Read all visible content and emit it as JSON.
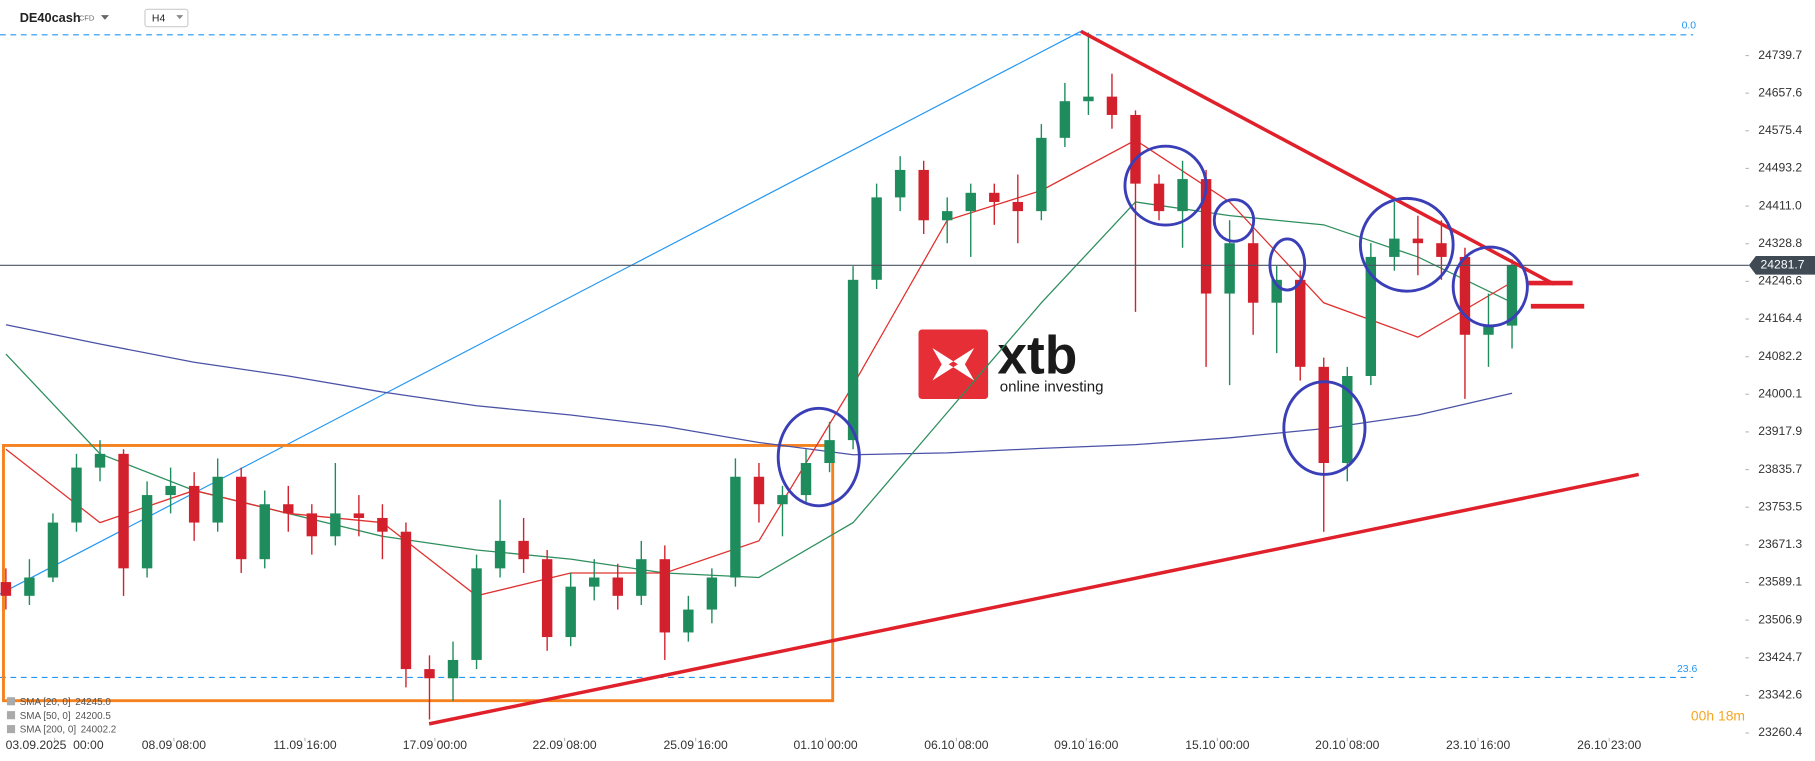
{
  "header": {
    "symbol": "DE40cash",
    "instrument_type": "CFD",
    "timeframe": "H4"
  },
  "watermark": {
    "brand": "xtb",
    "tagline": "online investing"
  },
  "fib_labels": [
    "0.0",
    "23.6"
  ],
  "countdown": "00h 18m",
  "chart_data": {
    "type": "candlestick",
    "up_color": "#1e8c5c",
    "down_color": "#d3202d",
    "open": [
      23590,
      23560,
      23600,
      23720,
      23840,
      23870,
      23620,
      23780,
      23800,
      23720,
      23820,
      23640,
      23760,
      23740,
      23690,
      23740,
      23730,
      23700,
      23400,
      23380,
      23420,
      23620,
      23680,
      23640,
      23470,
      23580,
      23600,
      23560,
      23640,
      23480,
      23530,
      23600,
      23820,
      23760,
      23780,
      23850,
      23900,
      24250,
      24430,
      24490,
      24380,
      24400,
      24440,
      24420,
      24400,
      24560,
      24640,
      24650,
      24610,
      24460,
      24400,
      24470,
      24220,
      24330,
      24200,
      24250,
      24060,
      23850,
      24040,
      24300,
      24340,
      24330,
      24300,
      24130,
      24150
    ],
    "high": [
      23620,
      23640,
      23740,
      23870,
      23900,
      23880,
      23810,
      23840,
      23830,
      23860,
      23840,
      23790,
      23800,
      23760,
      23850,
      23780,
      23760,
      23720,
      23430,
      23460,
      23650,
      23770,
      23730,
      23660,
      23610,
      23640,
      23630,
      23680,
      23670,
      23560,
      23620,
      23860,
      23850,
      23800,
      23880,
      23940,
      24280,
      24460,
      24520,
      24510,
      24430,
      24460,
      24460,
      24480,
      24590,
      24680,
      24790,
      24700,
      24620,
      24480,
      24510,
      24490,
      24380,
      24360,
      24280,
      24270,
      24080,
      24060,
      24330,
      24420,
      24390,
      24380,
      24320,
      24220,
      24295
    ],
    "low": [
      23530,
      23540,
      23590,
      23700,
      23810,
      23560,
      23600,
      23740,
      23680,
      23700,
      23610,
      23620,
      23700,
      23650,
      23670,
      23690,
      23640,
      23360,
      23290,
      23330,
      23400,
      23600,
      23610,
      23440,
      23450,
      23550,
      23530,
      23540,
      23420,
      23460,
      23500,
      23580,
      23720,
      23690,
      23760,
      23830,
      23880,
      24230,
      24400,
      24350,
      24330,
      24300,
      24370,
      24330,
      24380,
      24540,
      24610,
      24580,
      24180,
      24380,
      24320,
      24060,
      24020,
      24130,
      24090,
      24030,
      23700,
      23810,
      24020,
      24270,
      24260,
      24250,
      23990,
      24060,
      24100
    ],
    "close": [
      23560,
      23600,
      23720,
      23840,
      23870,
      23620,
      23780,
      23800,
      23720,
      23820,
      23640,
      23760,
      23740,
      23690,
      23740,
      23730,
      23700,
      23400,
      23380,
      23420,
      23620,
      23680,
      23640,
      23470,
      23580,
      23600,
      23560,
      23640,
      23480,
      23530,
      23600,
      23820,
      23760,
      23780,
      23850,
      23900,
      24250,
      24430,
      24490,
      24380,
      24400,
      24440,
      24420,
      24400,
      24560,
      24640,
      24650,
      24610,
      24460,
      24400,
      24470,
      24220,
      24330,
      24200,
      24250,
      24060,
      23850,
      24040,
      24300,
      24340,
      24330,
      24300,
      24130,
      24150,
      24281.7
    ],
    "series": [
      {
        "name": "SMA [200, 0]",
        "color": "#4b52a6",
        "x": [
          0,
          4,
          8,
          12,
          16,
          20,
          24,
          28,
          32,
          36,
          40,
          44,
          48,
          52,
          56,
          60,
          64
        ],
        "values": [
          24152,
          24110,
          24070,
          24040,
          24005,
          23975,
          23955,
          23930,
          23895,
          23868,
          23872,
          23882,
          23890,
          23905,
          23925,
          23955,
          24002.2
        ]
      },
      {
        "name": "SMA [50, 0]",
        "color": "#2e8f5e",
        "x": [
          0,
          4,
          8,
          12,
          16,
          20,
          24,
          28,
          32,
          36,
          40,
          44,
          48,
          52,
          56,
          60,
          64
        ],
        "values": [
          24088,
          23870,
          23790,
          23740,
          23690,
          23660,
          23640,
          23610,
          23600,
          23720,
          23960,
          24200,
          24420,
          24390,
          24370,
          24300,
          24200.5
        ]
      },
      {
        "name": "SMA [20, 0]",
        "color": "#e0312f",
        "x": [
          0,
          4,
          8,
          12,
          16,
          20,
          24,
          28,
          32,
          36,
          40,
          44,
          48,
          52,
          56,
          60,
          64
        ],
        "values": [
          23880,
          23720,
          23790,
          23740,
          23720,
          23560,
          23610,
          23610,
          23680,
          24020,
          24380,
          24445,
          24555,
          24420,
          24200,
          24125,
          24245.0
        ],
        "value_labels": [
          null,
          null,
          null,
          null,
          null,
          null,
          null,
          null,
          null,
          null,
          null,
          null,
          null,
          null,
          null,
          null,
          "24245.0"
        ]
      }
    ],
    "xlim": [
      -0.25,
      71.7
    ],
    "xticks": [
      {
        "value": 2.07,
        "label": "03.09.2025  00:00"
      },
      {
        "value": 7.14,
        "label": "08.09 08:00"
      },
      {
        "value": 12.71,
        "label": "11.09 16:00"
      },
      {
        "value": 18.23,
        "label": "17.09 00:00"
      },
      {
        "value": 23.74,
        "label": "22.09 08:00"
      },
      {
        "value": 29.31,
        "label": "25.09 16:00"
      },
      {
        "value": 34.83,
        "label": "01.10 00:00"
      },
      {
        "value": 40.39,
        "label": "06.10 08:00"
      },
      {
        "value": 45.91,
        "label": "09.10 16:00"
      },
      {
        "value": 51.48,
        "label": "15.10 00:00"
      },
      {
        "value": 57.0,
        "label": "20.10 08:00"
      },
      {
        "value": 62.56,
        "label": "23.10 16:00"
      },
      {
        "value": 68.13,
        "label": "26.10 23:00"
      }
    ],
    "ylim": [
      23250,
      24861
    ],
    "yticks": [
      24739.7,
      24657.6,
      24575.4,
      24493.2,
      {
        "value": 24411,
        "label": "24411.0"
      },
      24328.8,
      24246.6,
      24164.4,
      24082.2,
      24000.1,
      23917.9,
      23835.7,
      23753.5,
      23671.3,
      23589.1,
      23506.9,
      23424.7,
      23342.6,
      23260.4
    ],
    "grid": false
  }
}
